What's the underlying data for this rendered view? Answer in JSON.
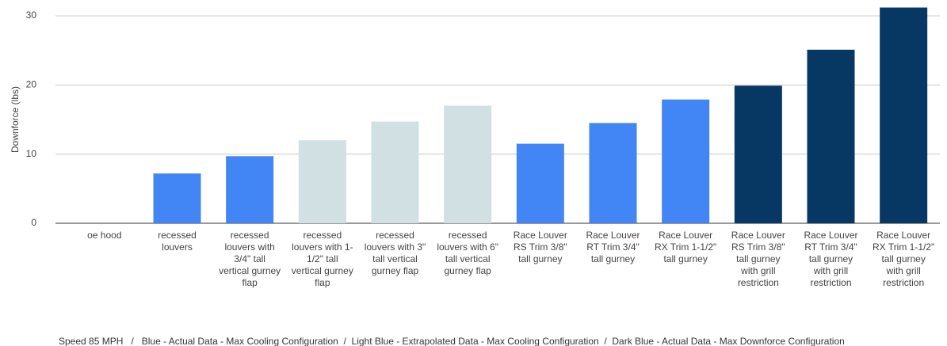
{
  "chart_data": {
    "type": "bar",
    "y_label": "Downforce (lbs)",
    "categories": [
      "oe hood",
      "recessed louvers",
      "recessed louvers with 3/4\" tall vertical gurney flap",
      "recessed louvers with 1-1/2\" tall vertical gurney flap",
      "recessed louvers with 3\" tall vertical gurney flap",
      "recessed louvers with 6\" tall vertical gurney flap",
      "Race Louver RS Trim 3/8\" tall gurney",
      "Race Louver RT Trim 3/4\" tall gurney",
      "Race Louver RX Trim 1-1/2\" tall gurney",
      "Race Louver RS Trim 3/8\" tall gurney with grill restriction",
      "Race Louver RT Trim 3/4\" tall gurney with grill restriction",
      "Race Louver RX Trim 1-1/2\" tall gurney with grill restriction"
    ],
    "values": [
      0,
      7.2,
      9.7,
      12,
      14.7,
      17,
      11.5,
      14.5,
      17.9,
      19.9,
      25.1,
      31.2
    ],
    "colors": [
      "#4285f4",
      "#4285f4",
      "#4285f4",
      "#d0e0e3",
      "#d0e0e3",
      "#d0e0e3",
      "#4285f4",
      "#4285f4",
      "#4285f4",
      "#073763",
      "#073763",
      "#073763"
    ],
    "ylim": [
      0,
      30
    ],
    "yticks": [
      0,
      10,
      20,
      30
    ],
    "grid": true,
    "note": "Speed 85 MPH   /   Blue - Actual Data - Max Cooling Configuration  /  Light Blue - Extrapolated Data - Max Cooling Configuration  /  Dark Blue - Actual Data - Max Downforce Configuration"
  }
}
